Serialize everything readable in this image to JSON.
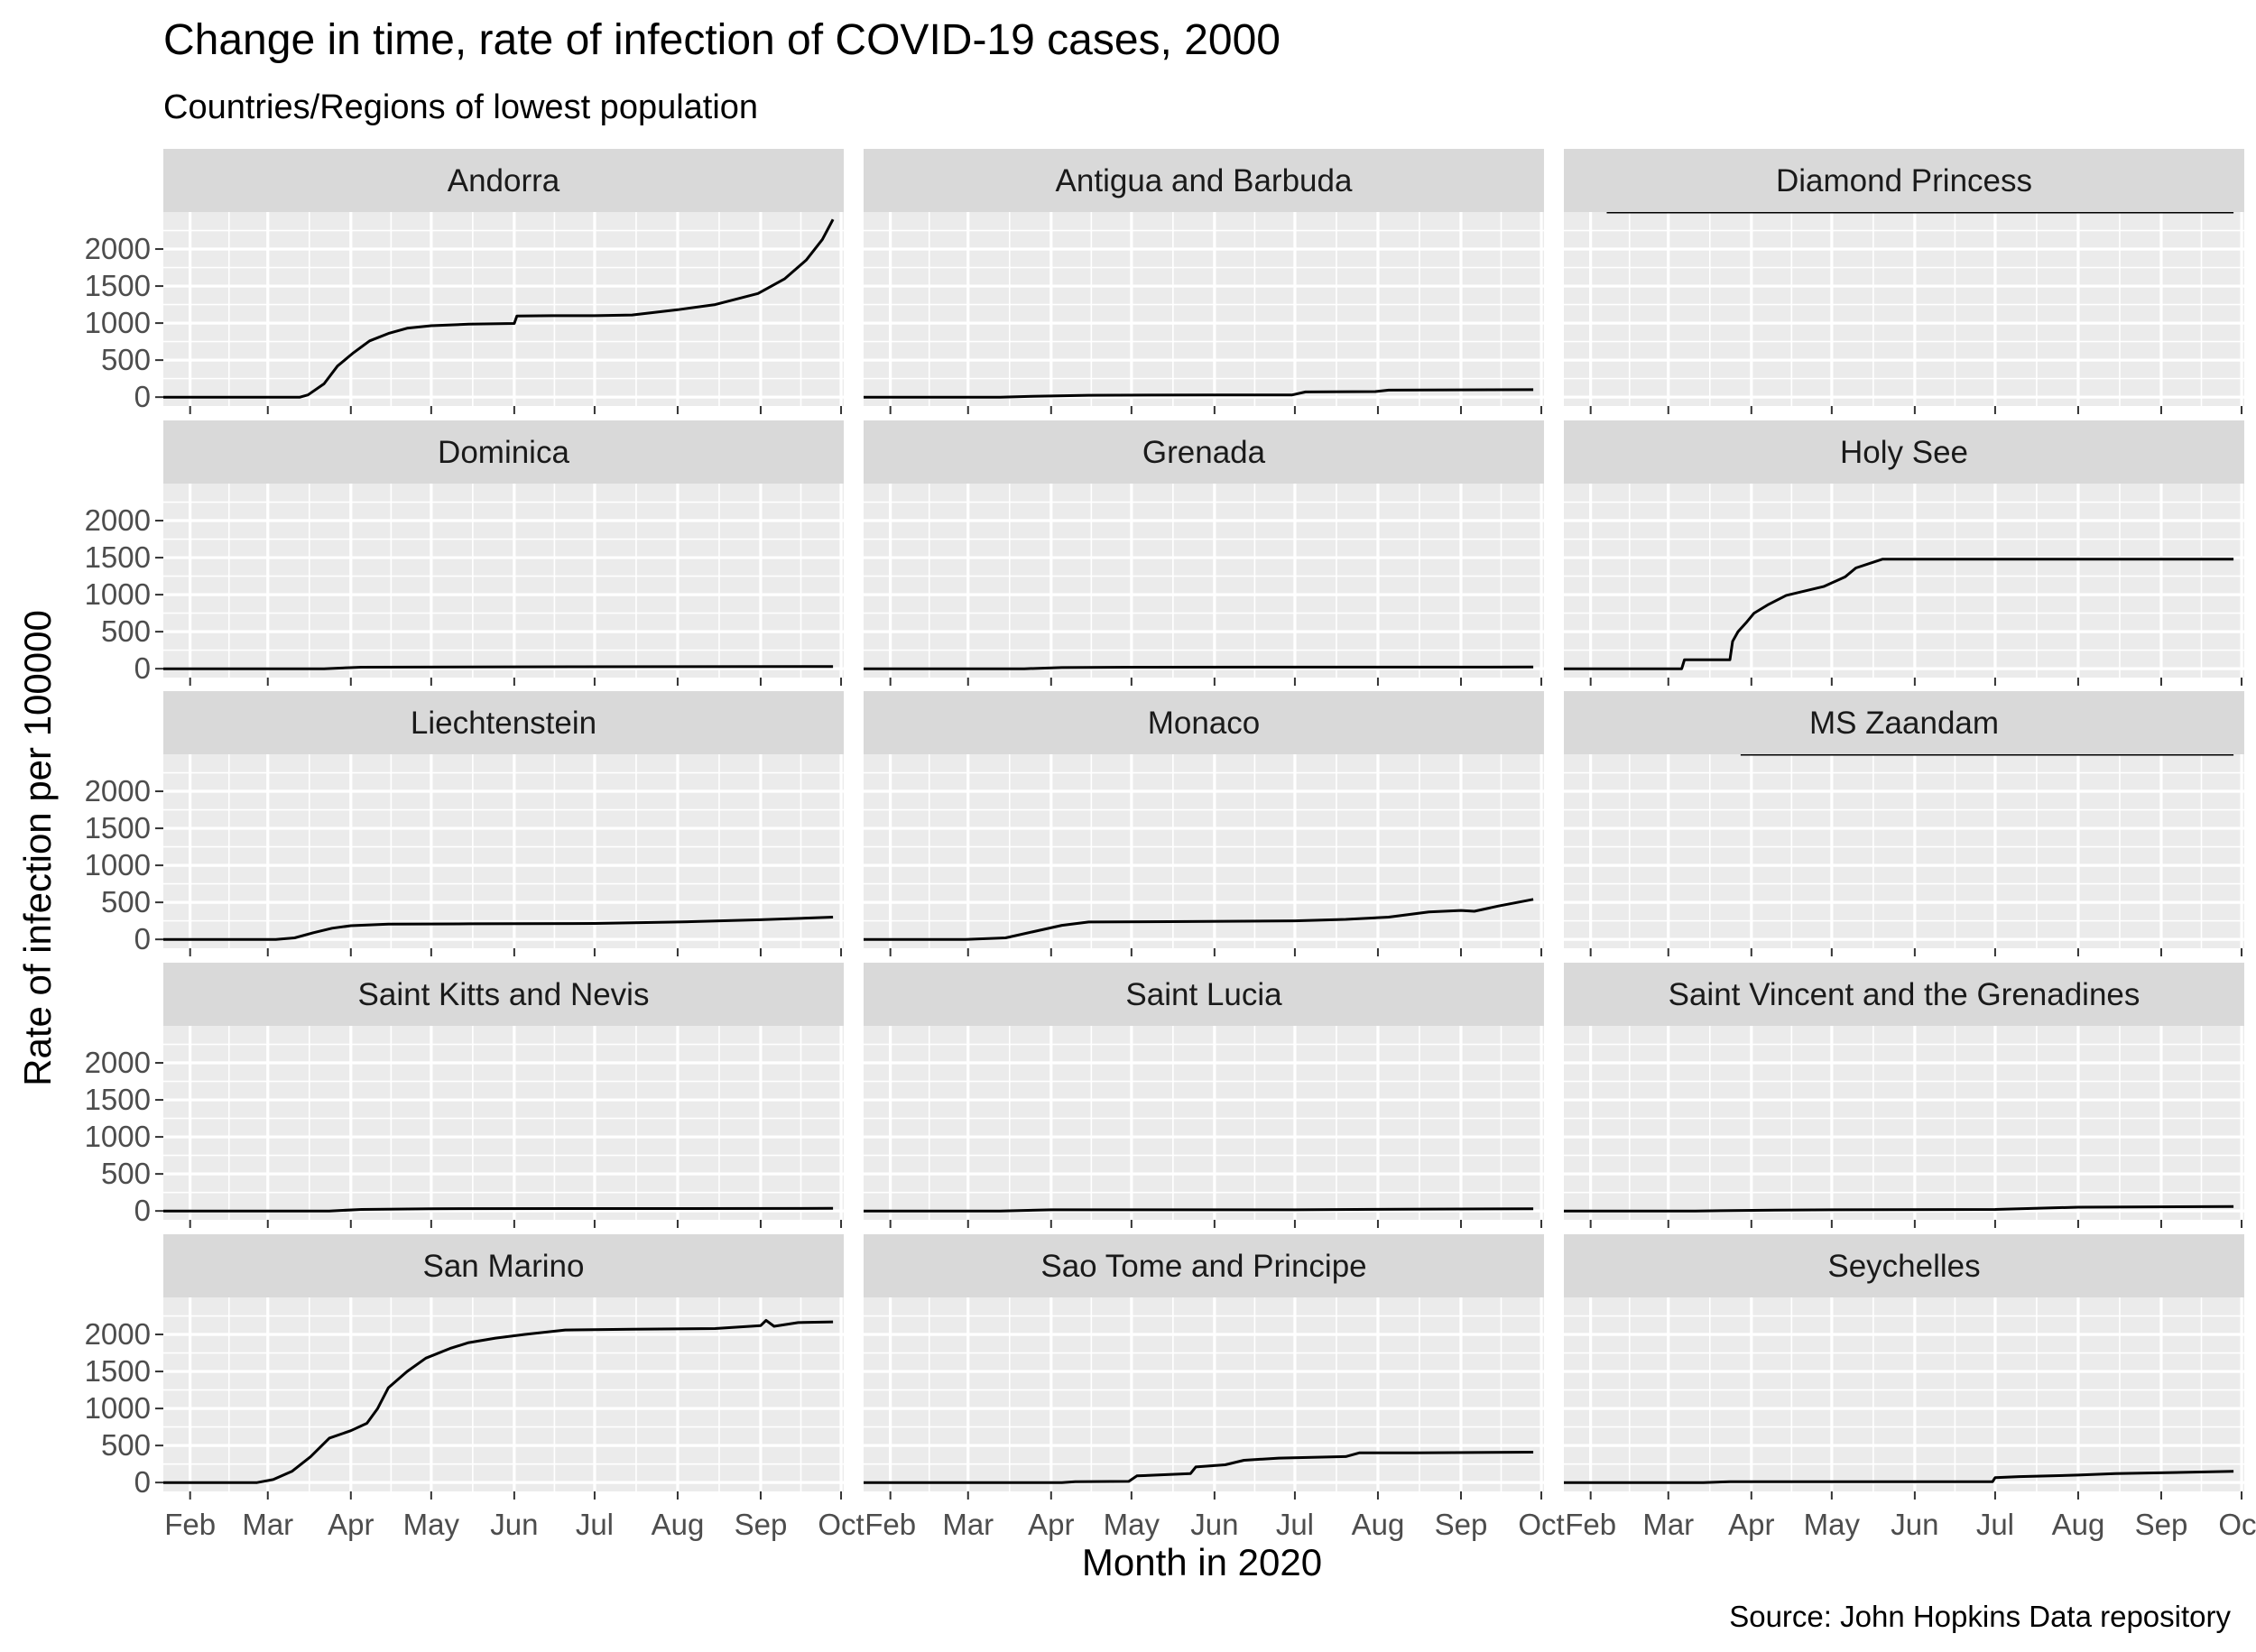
{
  "chart_data": {
    "type": "line",
    "title": "Change in time, rate of infection of COVID-19 cases, 2000",
    "subtitle": "Countries/Regions of lowest population",
    "xlabel": "Month in 2020",
    "ylabel": "Rate of infection per 100000",
    "caption": "Source: John Hopkins Data repository",
    "x_ticks": [
      "Feb",
      "Mar",
      "Apr",
      "May",
      "Jun",
      "Jul",
      "Aug",
      "Sep",
      "Oct"
    ],
    "x_tick_dates": [
      "2020-02-01",
      "2020-03-01",
      "2020-04-01",
      "2020-05-01",
      "2020-06-01",
      "2020-07-01",
      "2020-08-01",
      "2020-09-01",
      "2020-10-01"
    ],
    "y_ticks": [
      0,
      500,
      1000,
      1500,
      2000
    ],
    "xlim": [
      "2020-01-22",
      "2020-10-02"
    ],
    "ylim": [
      -120,
      2500
    ],
    "grid": true,
    "layout": {
      "rows": 5,
      "cols": 3
    },
    "panels": [
      {
        "name": "Andorra",
        "series": [
          [
            "2020-01-22",
            0
          ],
          [
            "2020-03-01",
            0
          ],
          [
            "2020-03-13",
            0
          ],
          [
            "2020-03-16",
            30
          ],
          [
            "2020-03-22",
            180
          ],
          [
            "2020-03-27",
            420
          ],
          [
            "2020-04-02",
            600
          ],
          [
            "2020-04-08",
            760
          ],
          [
            "2020-04-15",
            860
          ],
          [
            "2020-04-22",
            930
          ],
          [
            "2020-05-01",
            965
          ],
          [
            "2020-05-15",
            985
          ],
          [
            "2020-06-01",
            995
          ],
          [
            "2020-06-02",
            1095
          ],
          [
            "2020-06-15",
            1100
          ],
          [
            "2020-07-01",
            1100
          ],
          [
            "2020-07-15",
            1110
          ],
          [
            "2020-08-01",
            1180
          ],
          [
            "2020-08-15",
            1250
          ],
          [
            "2020-08-31",
            1400
          ],
          [
            "2020-09-10",
            1600
          ],
          [
            "2020-09-18",
            1850
          ],
          [
            "2020-09-24",
            2130
          ],
          [
            "2020-09-28",
            2400
          ]
        ]
      },
      {
        "name": "Antigua and Barbuda",
        "series": [
          [
            "2020-01-22",
            0
          ],
          [
            "2020-03-13",
            0
          ],
          [
            "2020-03-25",
            10
          ],
          [
            "2020-04-15",
            25
          ],
          [
            "2020-06-01",
            30
          ],
          [
            "2020-06-30",
            30
          ],
          [
            "2020-07-05",
            70
          ],
          [
            "2020-07-31",
            75
          ],
          [
            "2020-08-05",
            95
          ],
          [
            "2020-09-28",
            100
          ]
        ]
      },
      {
        "name": "Diamond Princess",
        "series": [
          [
            "2020-02-07",
            2500
          ],
          [
            "2020-09-28",
            2500
          ]
        ]
      },
      {
        "name": "Dominica",
        "series": [
          [
            "2020-01-22",
            0
          ],
          [
            "2020-03-22",
            0
          ],
          [
            "2020-04-05",
            20
          ],
          [
            "2020-06-01",
            25
          ],
          [
            "2020-09-28",
            30
          ]
        ]
      },
      {
        "name": "Grenada",
        "series": [
          [
            "2020-01-22",
            0
          ],
          [
            "2020-03-22",
            0
          ],
          [
            "2020-04-05",
            15
          ],
          [
            "2020-05-01",
            20
          ],
          [
            "2020-09-28",
            22
          ]
        ]
      },
      {
        "name": "Holy See",
        "series": [
          [
            "2020-01-22",
            0
          ],
          [
            "2020-03-06",
            0
          ],
          [
            "2020-03-07",
            120
          ],
          [
            "2020-03-24",
            120
          ],
          [
            "2020-03-25",
            370
          ],
          [
            "2020-03-27",
            500
          ],
          [
            "2020-03-30",
            620
          ],
          [
            "2020-04-02",
            750
          ],
          [
            "2020-04-07",
            860
          ],
          [
            "2020-04-14",
            990
          ],
          [
            "2020-04-28",
            1110
          ],
          [
            "2020-05-06",
            1240
          ],
          [
            "2020-05-10",
            1360
          ],
          [
            "2020-05-20",
            1480
          ],
          [
            "2020-09-28",
            1480
          ]
        ]
      },
      {
        "name": "Liechtenstein",
        "series": [
          [
            "2020-01-22",
            0
          ],
          [
            "2020-03-04",
            0
          ],
          [
            "2020-03-11",
            20
          ],
          [
            "2020-03-18",
            90
          ],
          [
            "2020-03-25",
            150
          ],
          [
            "2020-04-01",
            185
          ],
          [
            "2020-04-15",
            205
          ],
          [
            "2020-05-15",
            210
          ],
          [
            "2020-07-01",
            215
          ],
          [
            "2020-08-01",
            235
          ],
          [
            "2020-09-01",
            265
          ],
          [
            "2020-09-28",
            300
          ]
        ]
      },
      {
        "name": "Monaco",
        "series": [
          [
            "2020-01-22",
            0
          ],
          [
            "2020-02-29",
            0
          ],
          [
            "2020-03-15",
            20
          ],
          [
            "2020-03-25",
            100
          ],
          [
            "2020-04-05",
            190
          ],
          [
            "2020-04-15",
            235
          ],
          [
            "2020-05-15",
            240
          ],
          [
            "2020-07-01",
            250
          ],
          [
            "2020-07-20",
            270
          ],
          [
            "2020-08-05",
            300
          ],
          [
            "2020-08-20",
            370
          ],
          [
            "2020-09-01",
            390
          ],
          [
            "2020-09-06",
            380
          ],
          [
            "2020-09-15",
            450
          ],
          [
            "2020-09-28",
            540
          ]
        ]
      },
      {
        "name": "MS Zaandam",
        "series": [
          [
            "2020-03-28",
            2500
          ],
          [
            "2020-09-28",
            2500
          ]
        ]
      },
      {
        "name": "Saint Kitts and Nevis",
        "series": [
          [
            "2020-01-22",
            0
          ],
          [
            "2020-03-24",
            0
          ],
          [
            "2020-04-05",
            20
          ],
          [
            "2020-05-01",
            30
          ],
          [
            "2020-09-28",
            35
          ]
        ]
      },
      {
        "name": "Saint Lucia",
        "series": [
          [
            "2020-01-22",
            0
          ],
          [
            "2020-03-13",
            0
          ],
          [
            "2020-04-01",
            15
          ],
          [
            "2020-05-01",
            15
          ],
          [
            "2020-07-01",
            15
          ],
          [
            "2020-08-20",
            25
          ],
          [
            "2020-09-28",
            30
          ]
        ]
      },
      {
        "name": "Saint Vincent and the Grenadines",
        "series": [
          [
            "2020-01-22",
            0
          ],
          [
            "2020-03-11",
            0
          ],
          [
            "2020-04-10",
            10
          ],
          [
            "2020-05-01",
            15
          ],
          [
            "2020-07-01",
            20
          ],
          [
            "2020-08-01",
            50
          ],
          [
            "2020-09-28",
            60
          ]
        ]
      },
      {
        "name": "San Marino",
        "series": [
          [
            "2020-01-22",
            0
          ],
          [
            "2020-02-26",
            0
          ],
          [
            "2020-03-03",
            40
          ],
          [
            "2020-03-10",
            150
          ],
          [
            "2020-03-17",
            350
          ],
          [
            "2020-03-24",
            600
          ],
          [
            "2020-04-01",
            700
          ],
          [
            "2020-04-07",
            800
          ],
          [
            "2020-04-11",
            1000
          ],
          [
            "2020-04-15",
            1280
          ],
          [
            "2020-04-22",
            1500
          ],
          [
            "2020-04-29",
            1680
          ],
          [
            "2020-05-08",
            1810
          ],
          [
            "2020-05-15",
            1890
          ],
          [
            "2020-05-25",
            1950
          ],
          [
            "2020-06-05",
            2000
          ],
          [
            "2020-06-20",
            2060
          ],
          [
            "2020-07-15",
            2070
          ],
          [
            "2020-08-15",
            2080
          ],
          [
            "2020-09-01",
            2120
          ],
          [
            "2020-09-03",
            2190
          ],
          [
            "2020-09-06",
            2110
          ],
          [
            "2020-09-15",
            2160
          ],
          [
            "2020-09-28",
            2170
          ]
        ]
      },
      {
        "name": "Sao Tome and Principe",
        "series": [
          [
            "2020-01-22",
            0
          ],
          [
            "2020-04-05",
            0
          ],
          [
            "2020-04-10",
            10
          ],
          [
            "2020-04-30",
            15
          ],
          [
            "2020-05-03",
            90
          ],
          [
            "2020-05-23",
            120
          ],
          [
            "2020-05-25",
            210
          ],
          [
            "2020-06-05",
            240
          ],
          [
            "2020-06-12",
            300
          ],
          [
            "2020-06-25",
            330
          ],
          [
            "2020-07-20",
            350
          ],
          [
            "2020-07-25",
            400
          ],
          [
            "2020-08-15",
            400
          ],
          [
            "2020-09-28",
            410
          ]
        ]
      },
      {
        "name": "Seychelles",
        "series": [
          [
            "2020-01-22",
            0
          ],
          [
            "2020-03-14",
            0
          ],
          [
            "2020-03-24",
            10
          ],
          [
            "2020-06-30",
            10
          ],
          [
            "2020-07-01",
            65
          ],
          [
            "2020-07-10",
            80
          ],
          [
            "2020-08-01",
            100
          ],
          [
            "2020-08-15",
            120
          ],
          [
            "2020-09-28",
            150
          ]
        ]
      }
    ]
  }
}
